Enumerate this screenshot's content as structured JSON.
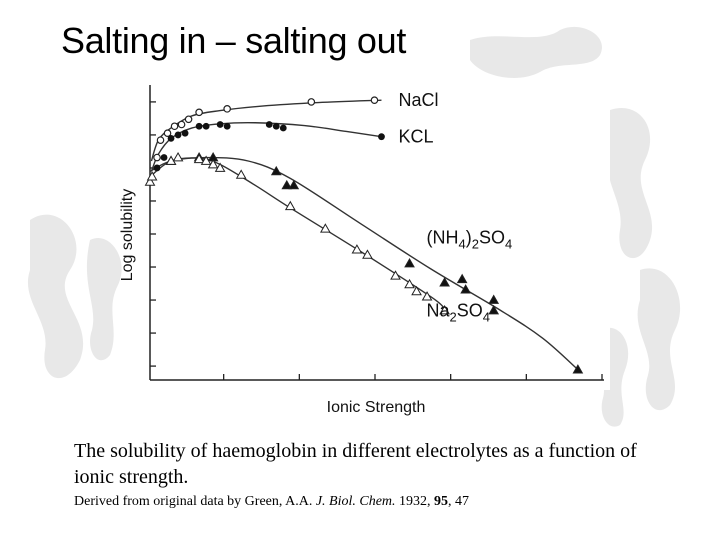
{
  "slide": {
    "title": "Salting in – salting out",
    "caption": "The solubility of haemoglobin in different electrolytes as a function of ionic strength.",
    "credit": {
      "prefix": "Derived from original data by Green, A.A. ",
      "journal": "J. Biol. Chem.",
      "year": " 1932, ",
      "volume": "95",
      "pages": ", 47"
    }
  },
  "chart_data": {
    "type": "scatter",
    "title": "",
    "xlabel": "Ionic Strength",
    "ylabel": "Log solubility",
    "xlim": [
      0,
      6
    ],
    "ylim": [
      0,
      8.4
    ],
    "grid": false,
    "series": [
      {
        "name": "NaCl",
        "marker": "open-circle",
        "points": [
          [
            0.1,
            6.4
          ],
          [
            0.15,
            6.9
          ],
          [
            0.25,
            7.1
          ],
          [
            0.35,
            7.3
          ],
          [
            0.45,
            7.35
          ],
          [
            0.55,
            7.5
          ],
          [
            0.7,
            7.7
          ],
          [
            1.1,
            7.8
          ],
          [
            2.3,
            8.0
          ],
          [
            3.2,
            8.05
          ]
        ],
        "curve": [
          [
            0.02,
            6.3
          ],
          [
            0.12,
            6.9
          ],
          [
            0.3,
            7.25
          ],
          [
            0.6,
            7.6
          ],
          [
            1.0,
            7.75
          ],
          [
            1.6,
            7.88
          ],
          [
            2.4,
            7.98
          ],
          [
            3.3,
            8.05
          ]
        ]
      },
      {
        "name": "KCL",
        "marker": "filled-circle",
        "points": [
          [
            0.1,
            6.1
          ],
          [
            0.2,
            6.4
          ],
          [
            0.3,
            6.95
          ],
          [
            0.4,
            7.05
          ],
          [
            0.5,
            7.1
          ],
          [
            0.7,
            7.3
          ],
          [
            0.8,
            7.3
          ],
          [
            1.0,
            7.35
          ],
          [
            1.1,
            7.3
          ],
          [
            1.7,
            7.35
          ],
          [
            1.8,
            7.3
          ],
          [
            1.9,
            7.25
          ],
          [
            3.3,
            7.0
          ]
        ],
        "curve": [
          [
            0.02,
            6.0
          ],
          [
            0.12,
            6.5
          ],
          [
            0.3,
            6.95
          ],
          [
            0.6,
            7.25
          ],
          [
            1.0,
            7.37
          ],
          [
            1.5,
            7.4
          ],
          [
            2.2,
            7.32
          ],
          [
            2.8,
            7.15
          ],
          [
            3.3,
            7.0
          ]
        ]
      },
      {
        "name": "(NH4)2SO4",
        "marker": "filled-triangle",
        "points": [
          [
            0.3,
            6.3
          ],
          [
            0.7,
            6.4
          ],
          [
            0.9,
            6.4
          ],
          [
            1.8,
            6.0
          ],
          [
            1.95,
            5.6
          ],
          [
            2.05,
            5.6
          ],
          [
            3.7,
            3.35
          ],
          [
            4.2,
            2.8
          ],
          [
            4.45,
            2.9
          ],
          [
            4.5,
            2.6
          ],
          [
            4.9,
            2.3
          ],
          [
            4.9,
            2.0
          ],
          [
            6.1,
            0.3
          ]
        ],
        "curve": [
          [
            0.0,
            6.0
          ],
          [
            0.3,
            6.3
          ],
          [
            0.8,
            6.4
          ],
          [
            1.4,
            6.3
          ],
          [
            2.0,
            5.8
          ],
          [
            3.0,
            4.5
          ],
          [
            4.0,
            3.2
          ],
          [
            5.0,
            2.0
          ],
          [
            5.6,
            1.2
          ],
          [
            6.1,
            0.3
          ]
        ]
      },
      {
        "name": "Na2SO4",
        "marker": "open-triangle",
        "points": [
          [
            0.0,
            5.7
          ],
          [
            0.03,
            5.85
          ],
          [
            0.3,
            6.3
          ],
          [
            0.4,
            6.4
          ],
          [
            0.7,
            6.35
          ],
          [
            0.8,
            6.3
          ],
          [
            0.9,
            6.2
          ],
          [
            1.0,
            6.1
          ],
          [
            1.3,
            5.9
          ],
          [
            2.0,
            5.0
          ],
          [
            2.5,
            4.35
          ],
          [
            2.95,
            3.75
          ],
          [
            3.1,
            3.6
          ],
          [
            3.5,
            3.0
          ],
          [
            3.7,
            2.75
          ],
          [
            3.8,
            2.55
          ],
          [
            3.95,
            2.4
          ],
          [
            4.2,
            2.0
          ]
        ],
        "curve": [
          [
            0.0,
            5.85
          ],
          [
            0.3,
            6.3
          ],
          [
            0.7,
            6.38
          ],
          [
            1.0,
            6.2
          ],
          [
            1.5,
            5.6
          ],
          [
            2.0,
            4.95
          ],
          [
            3.0,
            3.7
          ],
          [
            4.0,
            2.4
          ],
          [
            4.2,
            2.05
          ]
        ]
      }
    ],
    "legend_labels": [
      {
        "text": "NaCl",
        "base": "NaCl",
        "sub": "",
        "tail": "",
        "sub2": "",
        "at": [
          3.4,
          8.05
        ]
      },
      {
        "text": "KCL",
        "base": "KCL",
        "sub": "",
        "tail": "",
        "sub2": "",
        "at": [
          3.4,
          7.0
        ]
      },
      {
        "text": "(NH4)2SO4",
        "base": "(NH",
        "sub": "4",
        "tail": ")",
        "sub2": "2",
        "tail2": "SO",
        "sub3": "4",
        "at": [
          3.8,
          4.1
        ]
      },
      {
        "text": "Na2SO4",
        "base": "Na",
        "sub": "2",
        "tail": "SO",
        "sub2": "4",
        "tail2": "",
        "sub3": "",
        "at": [
          3.8,
          2.0
        ]
      }
    ],
    "y_ticks": [
      0.4,
      1.35,
      2.3,
      3.25,
      4.2,
      5.15,
      6.1,
      7.05,
      8.0
    ],
    "x_ticks": [
      1,
      2,
      3,
      4,
      5,
      6
    ]
  }
}
